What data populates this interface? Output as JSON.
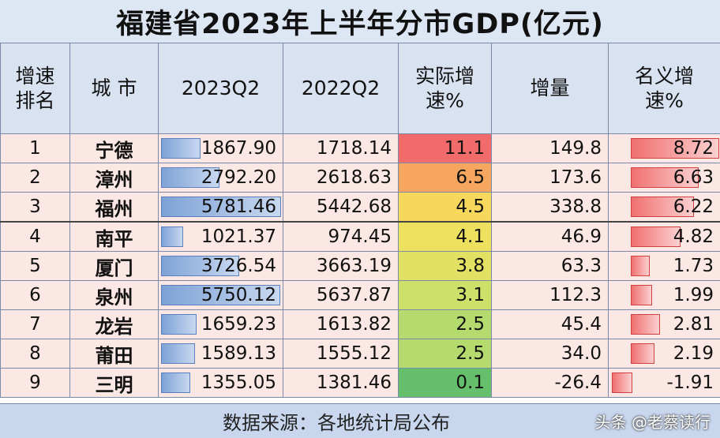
{
  "title": "福建省2023年上半年分市GDP(亿元)",
  "headers": {
    "rank": "增速\n排名",
    "city": "城 市",
    "q2023": "2023Q2",
    "q2022": "2022Q2",
    "real_growth": "实际增\n速%",
    "increase": "增量",
    "nominal_growth": "名义增\n速%"
  },
  "rows": [
    {
      "rank": "1",
      "city": "宁德",
      "q2023": "1867.90",
      "q2022": "1718.14",
      "real": "11.1",
      "increase": "149.8",
      "nominal": "8.72",
      "real_color": "#f26b6b"
    },
    {
      "rank": "2",
      "city": "漳州",
      "q2023": "2792.20",
      "q2022": "2618.63",
      "real": "6.5",
      "increase": "173.6",
      "nominal": "6.63",
      "real_color": "#f6a65e"
    },
    {
      "rank": "3",
      "city": "福州",
      "q2023": "5781.46",
      "q2022": "5442.68",
      "real": "4.5",
      "increase": "338.8",
      "nominal": "6.22",
      "real_color": "#f7d75c"
    },
    {
      "rank": "4",
      "city": "南平",
      "q2023": "1021.37",
      "q2022": "974.45",
      "real": "4.1",
      "increase": "46.9",
      "nominal": "4.82",
      "real_color": "#efe160"
    },
    {
      "rank": "5",
      "city": "厦门",
      "q2023": "3726.54",
      "q2022": "3663.19",
      "real": "3.8",
      "increase": "63.3",
      "nominal": "1.73",
      "real_color": "#e3e163"
    },
    {
      "rank": "6",
      "city": "泉州",
      "q2023": "5750.12",
      "q2022": "5637.87",
      "real": "3.1",
      "increase": "112.3",
      "nominal": "1.99",
      "real_color": "#cce06a"
    },
    {
      "rank": "7",
      "city": "龙岩",
      "q2023": "1659.23",
      "q2022": "1613.82",
      "real": "2.5",
      "increase": "45.4",
      "nominal": "2.81",
      "real_color": "#b5da6e"
    },
    {
      "rank": "8",
      "city": "莆田",
      "q2023": "1589.13",
      "q2022": "1555.12",
      "real": "2.5",
      "increase": "34.0",
      "nominal": "2.19",
      "real_color": "#b5da6e"
    },
    {
      "rank": "9",
      "city": "三明",
      "q2023": "1355.05",
      "q2022": "1381.46",
      "real": "0.1",
      "increase": "-26.4",
      "nominal": "-1.91",
      "real_color": "#66bf6a"
    }
  ],
  "footer": "数据来源：各地统计局公布",
  "watermark": "头条 @老蔡读行"
}
